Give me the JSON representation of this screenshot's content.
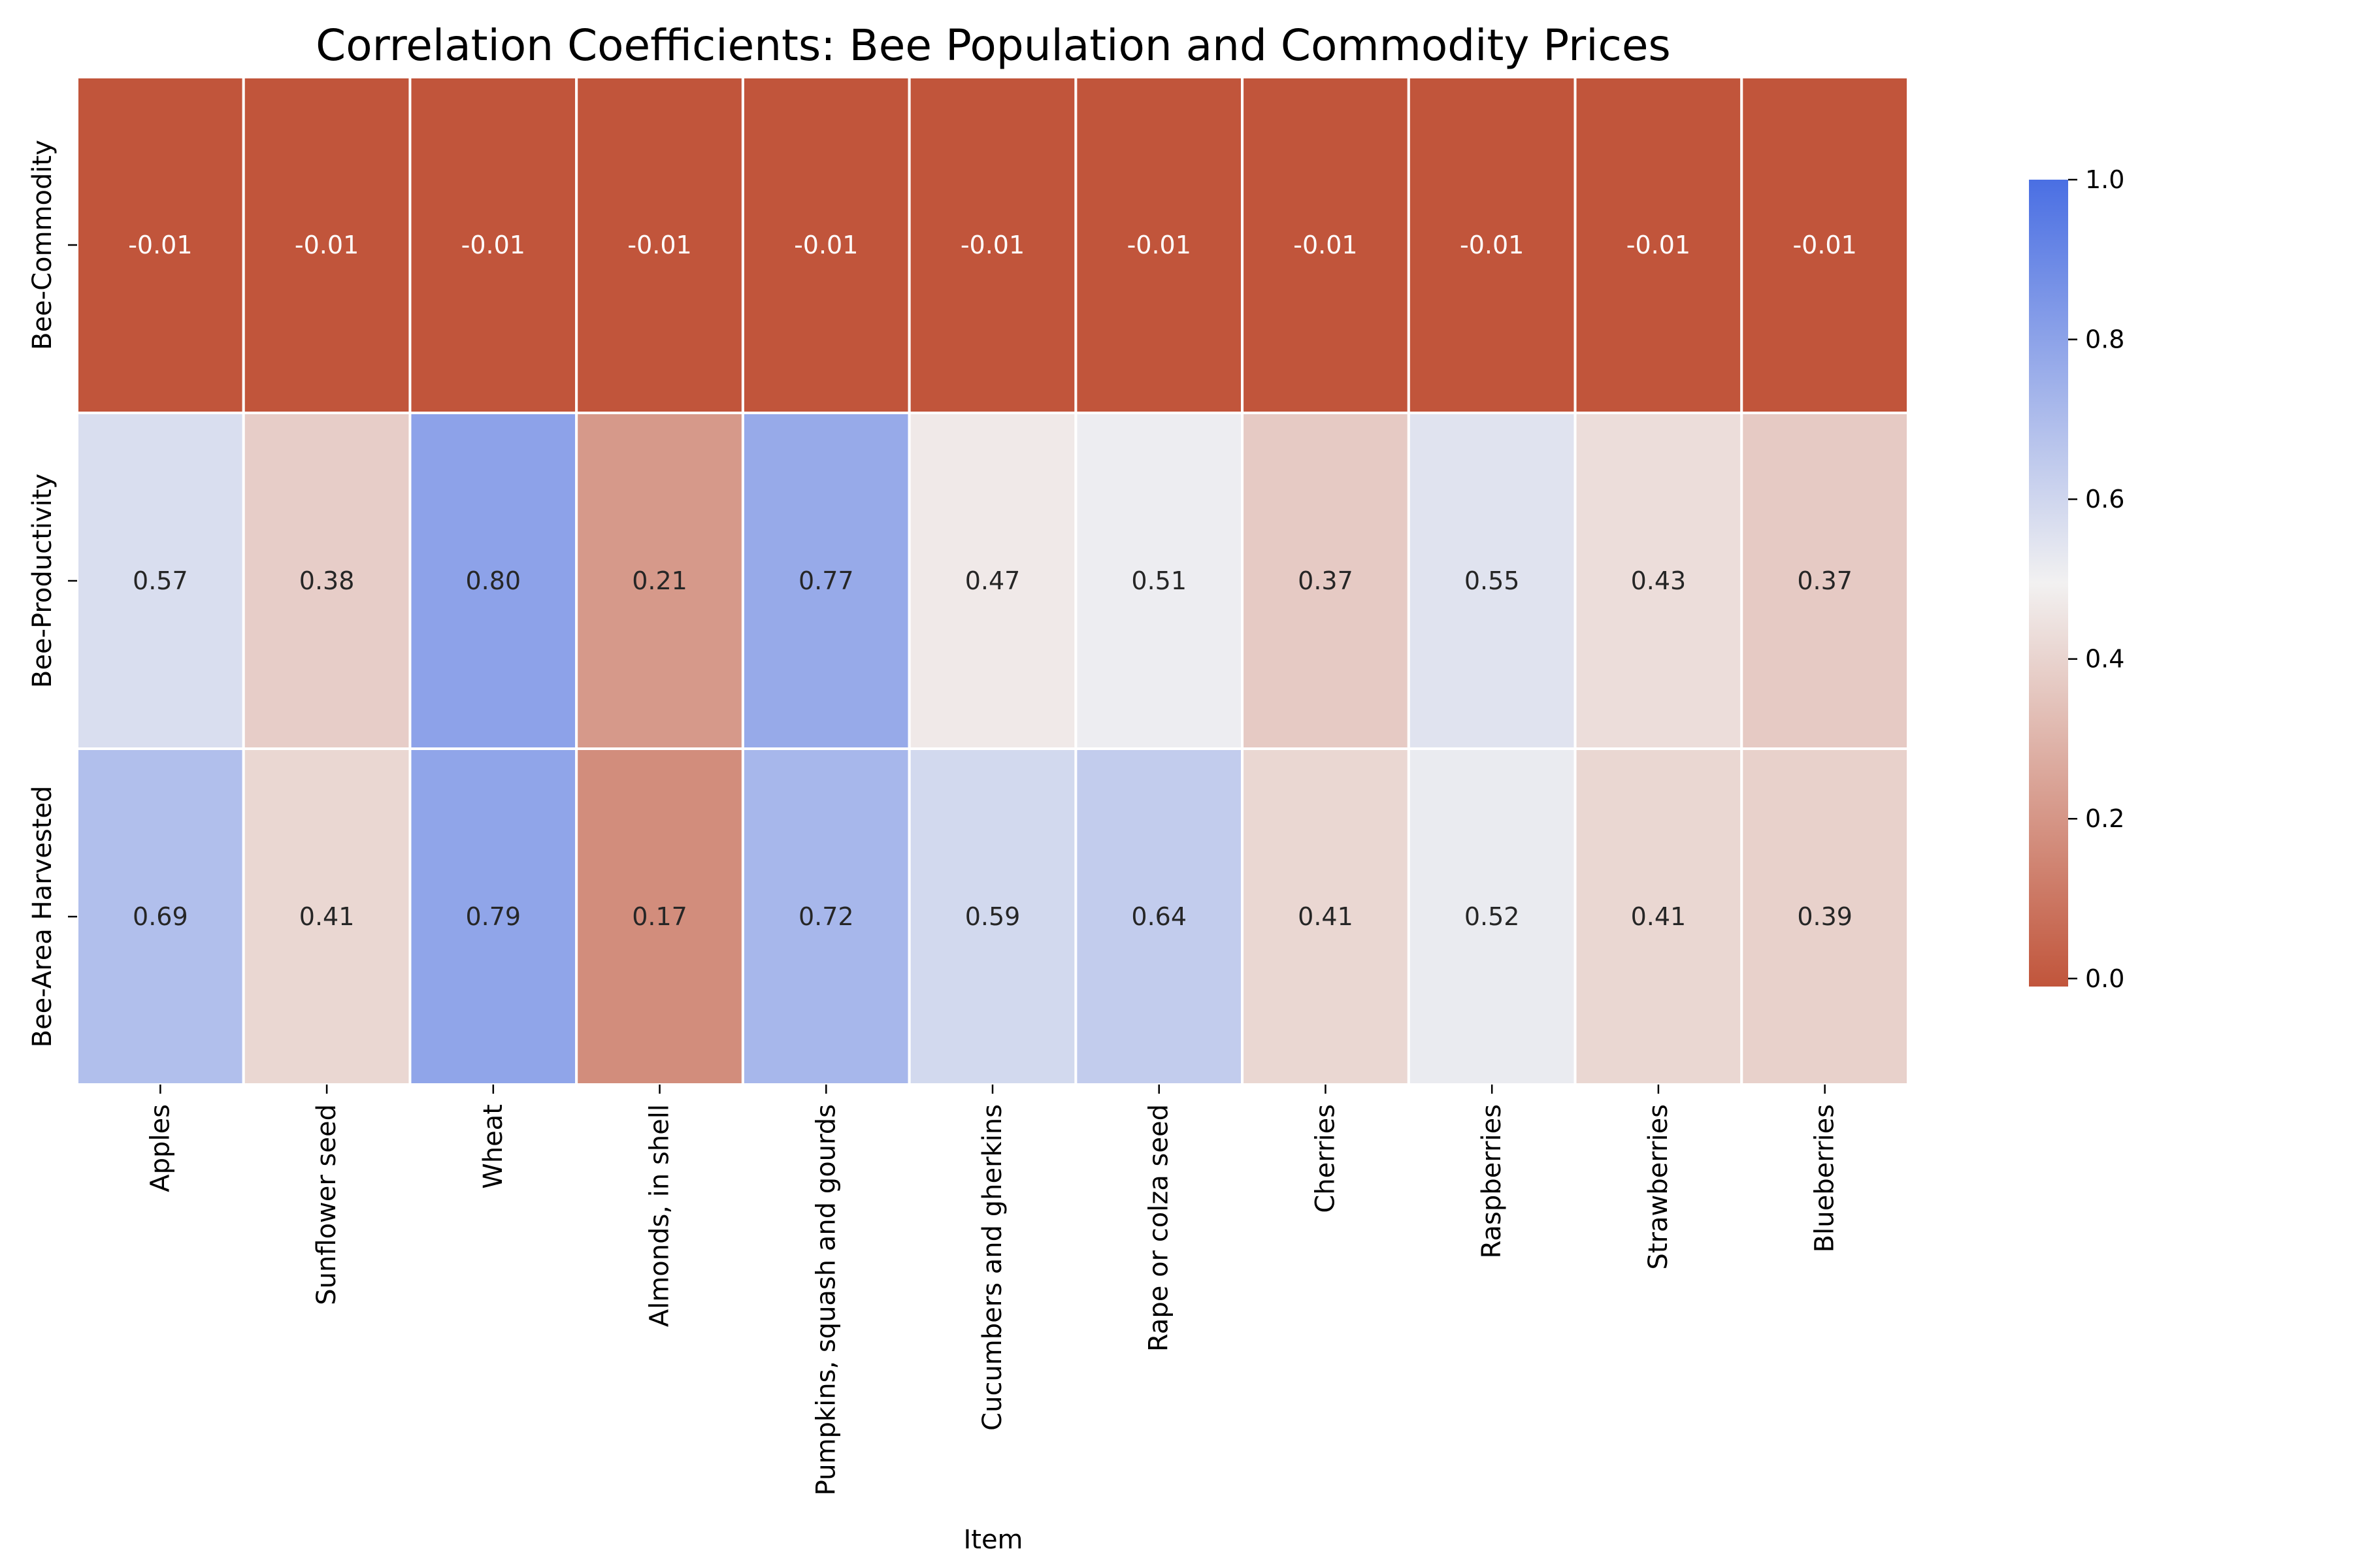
{
  "chart_data": {
    "type": "heatmap",
    "title": "Correlation Coefficients: Bee Population and Commodity Prices",
    "xlabel": "Item",
    "ylabel": "",
    "categories": [
      "Apples",
      "Sunflower seed",
      "Wheat",
      "Almonds, in shell",
      "Pumpkins, squash and gourds",
      "Cucumbers and gherkins",
      "Rape or colza seed",
      "Cherries",
      "Raspberries",
      "Strawberries",
      "Blueberries"
    ],
    "rows": [
      "Bee-Commodity",
      "Bee-Productivity",
      "Bee-Area Harvested"
    ],
    "values": [
      [
        -0.01,
        -0.01,
        -0.01,
        -0.01,
        -0.01,
        -0.01,
        -0.01,
        -0.01,
        -0.01,
        -0.01,
        -0.01
      ],
      [
        0.57,
        0.38,
        0.8,
        0.21,
        0.77,
        0.47,
        0.51,
        0.37,
        0.55,
        0.43,
        0.37
      ],
      [
        0.69,
        0.41,
        0.79,
        0.17,
        0.72,
        0.59,
        0.64,
        0.41,
        0.52,
        0.41,
        0.39
      ]
    ],
    "colorbar": {
      "vmin": -0.01,
      "vmax": 1.0,
      "ticks": [
        "0.0",
        "0.2",
        "0.4",
        "0.6",
        "0.8",
        "1.0"
      ],
      "low_color": "#c1553b",
      "mid_color": "#f2f1f1",
      "high_color": "#4a6fe3"
    },
    "legend_position": "right"
  }
}
